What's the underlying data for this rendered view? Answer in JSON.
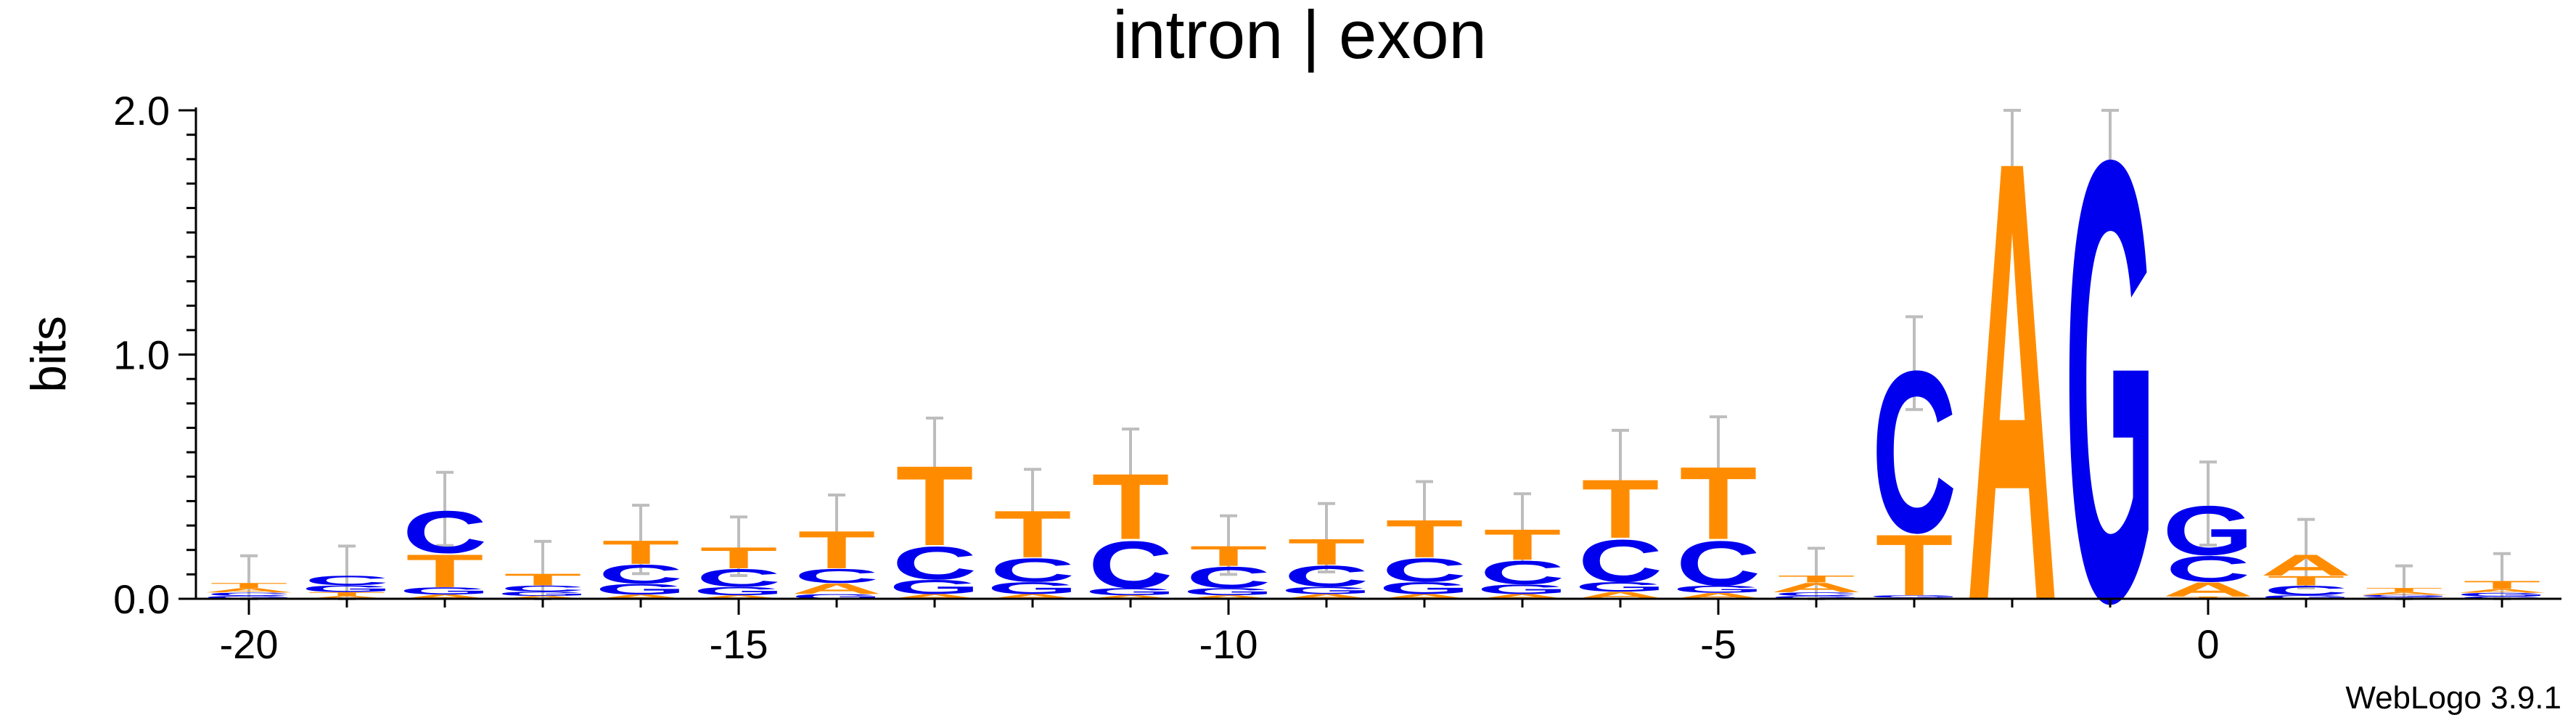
{
  "chart_data": {
    "type": "sequence-logo",
    "title": "intron | exon",
    "ylabel": "bits",
    "xlabel": "",
    "ylim": [
      0,
      2.0
    ],
    "y_ticks": [
      "0.0",
      "1.0",
      "2.0"
    ],
    "x_ticks": [
      "-20",
      "-15",
      "-10",
      "-5",
      "0"
    ],
    "x_tick_values": [
      -20,
      -15,
      -10,
      -5,
      0
    ],
    "footer": "WebLogo 3.9.1",
    "colors": {
      "C": "#0000ee",
      "G": "#0000ee",
      "T": "#ff8c00",
      "A": "#ff8c00",
      "error_bar": "#bdbdbd"
    },
    "positions": [
      {
        "pos": -20,
        "stack": [
          [
            "G",
            0.012
          ],
          [
            "C",
            0.014
          ],
          [
            "A",
            0.018
          ],
          [
            "T",
            0.022
          ]
        ],
        "error": 0.11
      },
      {
        "pos": -19,
        "stack": [
          [
            "A",
            0.012
          ],
          [
            "T",
            0.016
          ],
          [
            "G",
            0.028
          ],
          [
            "C",
            0.04
          ]
        ],
        "error": 0.12
      },
      {
        "pos": -18,
        "stack": [
          [
            "A",
            0.018
          ],
          [
            "G",
            0.03
          ],
          [
            "T",
            0.14
          ],
          [
            "C",
            0.18
          ]
        ],
        "error": 0.15
      },
      {
        "pos": -17,
        "stack": [
          [
            "A",
            0.012
          ],
          [
            "G",
            0.018
          ],
          [
            "C",
            0.025
          ],
          [
            "T",
            0.05
          ]
        ],
        "error": 0.13
      },
      {
        "pos": -16,
        "stack": [
          [
            "A",
            0.018
          ],
          [
            "G",
            0.045
          ],
          [
            "C",
            0.08
          ],
          [
            "T",
            0.1
          ]
        ],
        "error": 0.14
      },
      {
        "pos": -15,
        "stack": [
          [
            "A",
            0.015
          ],
          [
            "G",
            0.035
          ],
          [
            "C",
            0.075
          ],
          [
            "T",
            0.09
          ]
        ],
        "error": 0.12
      },
      {
        "pos": -14,
        "stack": [
          [
            "G",
            0.02
          ],
          [
            "A",
            0.045
          ],
          [
            "C",
            0.06
          ],
          [
            "T",
            0.16
          ]
        ],
        "error": 0.14
      },
      {
        "pos": -13,
        "stack": [
          [
            "A",
            0.02
          ],
          [
            "G",
            0.06
          ],
          [
            "C",
            0.14
          ],
          [
            "T",
            0.34
          ]
        ],
        "error": 0.18
      },
      {
        "pos": -12,
        "stack": [
          [
            "A",
            0.02
          ],
          [
            "G",
            0.05
          ],
          [
            "C",
            0.1
          ],
          [
            "T",
            0.2
          ]
        ],
        "error": 0.16
      },
      {
        "pos": -11,
        "stack": [
          [
            "A",
            0.015
          ],
          [
            "G",
            0.03
          ],
          [
            "C",
            0.2
          ],
          [
            "T",
            0.28
          ]
        ],
        "error": 0.17
      },
      {
        "pos": -10,
        "stack": [
          [
            "A",
            0.015
          ],
          [
            "G",
            0.03
          ],
          [
            "C",
            0.09
          ],
          [
            "T",
            0.085
          ]
        ],
        "error": 0.12
      },
      {
        "pos": -9,
        "stack": [
          [
            "A",
            0.02
          ],
          [
            "G",
            0.03
          ],
          [
            "C",
            0.09
          ],
          [
            "T",
            0.11
          ]
        ],
        "error": 0.14
      },
      {
        "pos": -8,
        "stack": [
          [
            "A",
            0.02
          ],
          [
            "G",
            0.05
          ],
          [
            "C",
            0.1
          ],
          [
            "T",
            0.16
          ]
        ],
        "error": 0.15
      },
      {
        "pos": -7,
        "stack": [
          [
            "A",
            0.02
          ],
          [
            "G",
            0.04
          ],
          [
            "C",
            0.1
          ],
          [
            "T",
            0.13
          ]
        ],
        "error": 0.14
      },
      {
        "pos": -6,
        "stack": [
          [
            "A",
            0.03
          ],
          [
            "G",
            0.04
          ],
          [
            "C",
            0.18
          ],
          [
            "T",
            0.25
          ]
        ],
        "error": 0.19
      },
      {
        "pos": -5,
        "stack": [
          [
            "A",
            0.025
          ],
          [
            "G",
            0.03
          ],
          [
            "C",
            0.19
          ],
          [
            "T",
            0.31
          ]
        ],
        "error": 0.19
      },
      {
        "pos": -4,
        "stack": [
          [
            "G",
            0.012
          ],
          [
            "C",
            0.015
          ],
          [
            "A",
            0.04
          ],
          [
            "T",
            0.03
          ]
        ],
        "error": 0.11
      },
      {
        "pos": -3,
        "stack": [
          [
            "A",
            0.005
          ],
          [
            "G",
            0.01
          ],
          [
            "T",
            0.26
          ],
          [
            "C",
            0.69
          ]
        ],
        "error": 0.19
      },
      {
        "pos": -2,
        "stack": [
          [
            "A",
            1.88
          ]
        ],
        "error": 0.12
      },
      {
        "pos": -1,
        "stack": [
          [
            "G",
            1.88
          ]
        ],
        "error": 0.12
      },
      {
        "pos": 0,
        "stack": [
          [
            "T",
            0.01
          ],
          [
            "A",
            0.06
          ],
          [
            "C",
            0.11
          ],
          [
            "G",
            0.21
          ]
        ],
        "error": 0.17
      },
      {
        "pos": 1,
        "stack": [
          [
            "G",
            0.015
          ],
          [
            "C",
            0.04
          ],
          [
            "T",
            0.04
          ],
          [
            "A",
            0.09
          ]
        ],
        "error": 0.14
      },
      {
        "pos": 2,
        "stack": [
          [
            "C",
            0.008
          ],
          [
            "G",
            0.008
          ],
          [
            "A",
            0.012
          ],
          [
            "T",
            0.017
          ]
        ],
        "error": 0.09
      },
      {
        "pos": 3,
        "stack": [
          [
            "C",
            0.01
          ],
          [
            "G",
            0.015
          ],
          [
            "A",
            0.015
          ],
          [
            "T",
            0.035
          ]
        ],
        "error": 0.11
      }
    ]
  }
}
